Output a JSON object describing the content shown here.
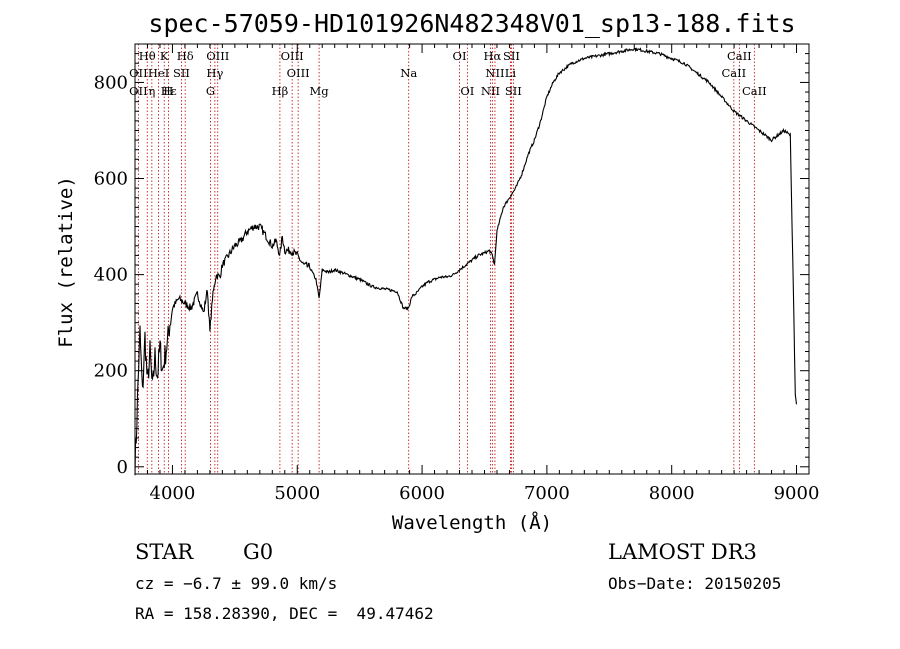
{
  "chart_data": {
    "type": "line",
    "title": "spec-57059-HD101926N482348V01_sp13-188.fits",
    "xlabel": "Wavelength (Å)",
    "ylabel": "Flux (relative)",
    "xlim": [
      3700,
      9100
    ],
    "ylim": [
      -15,
      880
    ],
    "x_ticks": [
      4000,
      5000,
      6000,
      7000,
      8000,
      9000
    ],
    "y_ticks": [
      0,
      200,
      400,
      600,
      800
    ],
    "series": [
      {
        "name": "flux",
        "x": [
          3700,
          3710,
          3725,
          3740,
          3760,
          3780,
          3800,
          3820,
          3840,
          3860,
          3880,
          3900,
          3920,
          3940,
          3960,
          3980,
          4000,
          4050,
          4100,
          4150,
          4200,
          4250,
          4280,
          4300,
          4320,
          4350,
          4380,
          4400,
          4450,
          4500,
          4550,
          4600,
          4650,
          4700,
          4750,
          4800,
          4830,
          4861,
          4880,
          4900,
          4950,
          5000,
          5050,
          5100,
          5150,
          5175,
          5200,
          5250,
          5300,
          5400,
          5500,
          5600,
          5700,
          5800,
          5850,
          5890,
          5920,
          5950,
          6000,
          6050,
          6100,
          6150,
          6200,
          6250,
          6300,
          6350,
          6400,
          6450,
          6500,
          6540,
          6563,
          6580,
          6600,
          6650,
          6700,
          6750,
          6800,
          6850,
          6900,
          6950,
          7000,
          7050,
          7100,
          7200,
          7300,
          7400,
          7500,
          7600,
          7700,
          7800,
          7900,
          8000,
          8100,
          8200,
          8300,
          8400,
          8500,
          8550,
          8600,
          8650,
          8700,
          8750,
          8800,
          8850,
          8900,
          8950,
          8980,
          8990,
          9000
        ],
        "values": [
          10,
          60,
          180,
          280,
          150,
          270,
          170,
          240,
          160,
          230,
          190,
          250,
          200,
          230,
          260,
          300,
          330,
          350,
          340,
          330,
          360,
          320,
          370,
          280,
          350,
          400,
          395,
          420,
          440,
          460,
          470,
          490,
          500,
          500,
          480,
          460,
          470,
          440,
          480,
          450,
          450,
          440,
          420,
          415,
          390,
          350,
          410,
          405,
          410,
          400,
          390,
          375,
          370,
          365,
          330,
          330,
          355,
          360,
          375,
          385,
          390,
          395,
          395,
          400,
          410,
          420,
          430,
          440,
          445,
          450,
          440,
          420,
          490,
          540,
          560,
          580,
          610,
          650,
          680,
          720,
          770,
          800,
          820,
          840,
          850,
          855,
          860,
          865,
          870,
          865,
          860,
          850,
          840,
          820,
          800,
          770,
          740,
          730,
          720,
          710,
          700,
          690,
          680,
          690,
          700,
          690,
          300,
          150,
          130
        ]
      }
    ],
    "line_markers": [
      {
        "label": "Hθ",
        "wavelength": 3798,
        "row": 1
      },
      {
        "label": "OII",
        "wavelength": 3727,
        "row": 2
      },
      {
        "label": "K",
        "wavelength": 3934,
        "row": 1
      },
      {
        "label": "HeI",
        "wavelength": 3889,
        "row": 2
      },
      {
        "label": "Hδ",
        "wavelength": 4102,
        "row": 1
      },
      {
        "label": "SII",
        "wavelength": 4072,
        "row": 2
      },
      {
        "label": "OIII",
        "wavelength": 4363,
        "row": 1
      },
      {
        "label": "Hγ",
        "wavelength": 4340,
        "row": 2
      },
      {
        "label": "OIII",
        "wavelength": 4959,
        "row": 1
      },
      {
        "label": "OIII",
        "wavelength": 5007,
        "row": 2
      },
      {
        "label": "Na",
        "wavelength": 5893,
        "row": 2
      },
      {
        "label": "OI",
        "wavelength": 6300,
        "row": 1
      },
      {
        "label": "Hα",
        "wavelength": 6563,
        "row": 1
      },
      {
        "label": "SII",
        "wavelength": 6716,
        "row": 1
      },
      {
        "label": "NII",
        "wavelength": 6584,
        "row": 2
      },
      {
        "label": "Li",
        "wavelength": 6708,
        "row": 2
      },
      {
        "label": "CaII",
        "wavelength": 8542,
        "row": 1
      },
      {
        "label": "CaII",
        "wavelength": 8498,
        "row": 2
      },
      {
        "label": "OII",
        "wavelength": 3727,
        "row": 3
      },
      {
        "label": "Hε",
        "wavelength": 3970,
        "row": 3
      },
      {
        "label": "η",
        "wavelength": 3835,
        "row": 3
      },
      {
        "label": "H",
        "wavelength": 3968,
        "row": 3
      },
      {
        "label": "G",
        "wavelength": 4305,
        "row": 3
      },
      {
        "label": "Hβ",
        "wavelength": 4861,
        "row": 3
      },
      {
        "label": "Mg",
        "wavelength": 5175,
        "row": 3
      },
      {
        "label": "OI",
        "wavelength": 6363,
        "row": 3
      },
      {
        "label": "NII",
        "wavelength": 6548,
        "row": 3
      },
      {
        "label": "SII",
        "wavelength": 6731,
        "row": 3
      },
      {
        "label": "CaII",
        "wavelength": 8662,
        "row": 3
      }
    ],
    "marker_lines": [
      3727,
      3798,
      3835,
      3889,
      3934,
      3968,
      4072,
      4102,
      4305,
      4340,
      4363,
      4861,
      4959,
      5007,
      5175,
      5893,
      6300,
      6363,
      6548,
      6563,
      6584,
      6708,
      6716,
      6731,
      8498,
      8542,
      8662
    ],
    "marker_color": "#c00000"
  },
  "info": {
    "object_class": "STAR",
    "subclass": "G0",
    "survey": "LAMOST DR3",
    "cz": "cz = −6.7 ± 99.0 km/s",
    "obs_date": "Obs−Date: 20150205",
    "coords": "RA = 158.28390, DEC =  49.47462"
  }
}
